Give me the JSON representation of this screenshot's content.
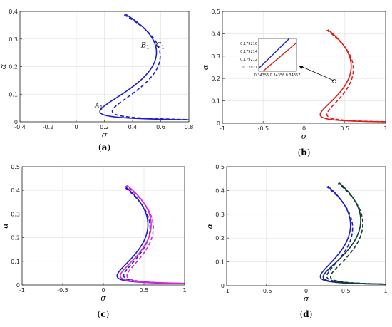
{
  "chart_data": [
    {
      "type": "line",
      "panel_label": "a",
      "xlabel": "σ",
      "ylabel": "α",
      "xlim": [
        -0.4,
        0.8
      ],
      "ylim": [
        0,
        0.4
      ],
      "xticks": [
        "-0.4",
        "-0.2",
        "0",
        "0.2",
        "0.4",
        "0.6",
        "0.8"
      ],
      "yticks": [
        "0",
        "0.1",
        "0.2",
        "0.3",
        "0.4"
      ],
      "grid": true,
      "annotations": [
        {
          "text": "A",
          "sub": "1",
          "x": 0.13,
          "y": 0.05
        },
        {
          "text": "B",
          "sub": "1",
          "x": 0.46,
          "y": 0.27
        },
        {
          "text": "C",
          "sub": "1",
          "x": 0.565,
          "y": 0.27
        }
      ],
      "series": [
        {
          "color": "#1a1ad6",
          "style": "solid",
          "fold": {
            "amax": 0.3919,
            "a0": 0.2564,
            "c": 0.5413,
            "k": 11.8
          }
        },
        {
          "color": "#1a1ad6",
          "style": "dashed",
          "fold": {
            "amax": 0.3904,
            "a0": 0.2436,
            "c": 0.5663,
            "k": 11.82
          }
        }
      ]
    },
    {
      "type": "line",
      "panel_label": "b",
      "xlabel": "σ",
      "ylabel": "α",
      "xlim": [
        -1,
        1
      ],
      "ylim": [
        0,
        0.5
      ],
      "xticks": [
        "-1",
        "-0.5",
        "0",
        "0.5",
        "1"
      ],
      "yticks": [
        "0",
        "0.1",
        "0.2",
        "0.3",
        "0.4",
        "0.5"
      ],
      "grid": true,
      "inset": {
        "x_ticks": [
          "0.34355",
          "0.34356",
          "0.34357"
        ],
        "y_ticks": [
          "0.179216",
          "0.179214",
          "0.179212",
          "0.17921"
        ]
      },
      "series": [
        {
          "color": "#e31b1b",
          "style": "solid",
          "fold": {
            "amax": 0.418,
            "a0": 0.2598,
            "c": 0.5504,
            "k": 11.0
          }
        },
        {
          "color": "#e31b1b",
          "style": "dashed",
          "fold": {
            "amax": 0.416,
            "a0": 0.2475,
            "c": 0.5752,
            "k": 11.02
          }
        }
      ]
    },
    {
      "type": "line",
      "panel_label": "c",
      "xlabel": "σ",
      "ylabel": "α",
      "xlim": [
        -1,
        1
      ],
      "ylim": [
        0,
        0.5
      ],
      "xticks": [
        "-1",
        "-0.5",
        "0",
        "0.5",
        "1"
      ],
      "yticks": [
        "0",
        "0.1",
        "0.2",
        "0.3",
        "0.4",
        "0.5"
      ],
      "grid": true,
      "series": [
        {
          "color": "#1a1ad6",
          "style": "solid",
          "fold": {
            "amax": 0.416,
            "a0": 0.2598,
            "c": 0.5204,
            "k": 11.0
          }
        },
        {
          "color": "#1a1ad6",
          "style": "dashed",
          "fold": {
            "amax": 0.414,
            "a0": 0.2475,
            "c": 0.5452,
            "k": 11.02
          }
        },
        {
          "color": "#e020e0",
          "style": "solid",
          "fold": {
            "amax": 0.421,
            "a0": 0.2598,
            "c": 0.5604,
            "k": 11.0
          }
        },
        {
          "color": "#e020e0",
          "style": "dashed",
          "fold": {
            "amax": 0.419,
            "a0": 0.2475,
            "c": 0.5852,
            "k": 11.02
          }
        }
      ]
    },
    {
      "type": "line",
      "panel_label": "d",
      "xlabel": "σ",
      "ylabel": "α",
      "xlim": [
        -1,
        1
      ],
      "ylim": [
        0,
        0.5
      ],
      "xticks": [
        "-1",
        "-0.5",
        "0",
        "0.5",
        "1"
      ],
      "yticks": [
        "0",
        "0.1",
        "0.2",
        "0.3",
        "0.4",
        "0.5"
      ],
      "grid": true,
      "series": [
        {
          "color": "#1a1ad6",
          "style": "solid",
          "fold": {
            "amax": 0.418,
            "a0": 0.2598,
            "c": 0.5304,
            "k": 11.0
          }
        },
        {
          "color": "#1a1ad6",
          "style": "dashed",
          "fold": {
            "amax": 0.416,
            "a0": 0.2475,
            "c": 0.5552,
            "k": 11.02
          }
        },
        {
          "color": "#0f3d2e",
          "style": "solid",
          "fold": {
            "amax": 0.432,
            "a0": 0.2784,
            "c": 0.6604,
            "k": 11.0
          }
        },
        {
          "color": "#0f3d2e",
          "style": "dashed",
          "fold": {
            "amax": 0.43,
            "a0": 0.265,
            "c": 0.6852,
            "k": 11.02
          }
        }
      ]
    }
  ]
}
